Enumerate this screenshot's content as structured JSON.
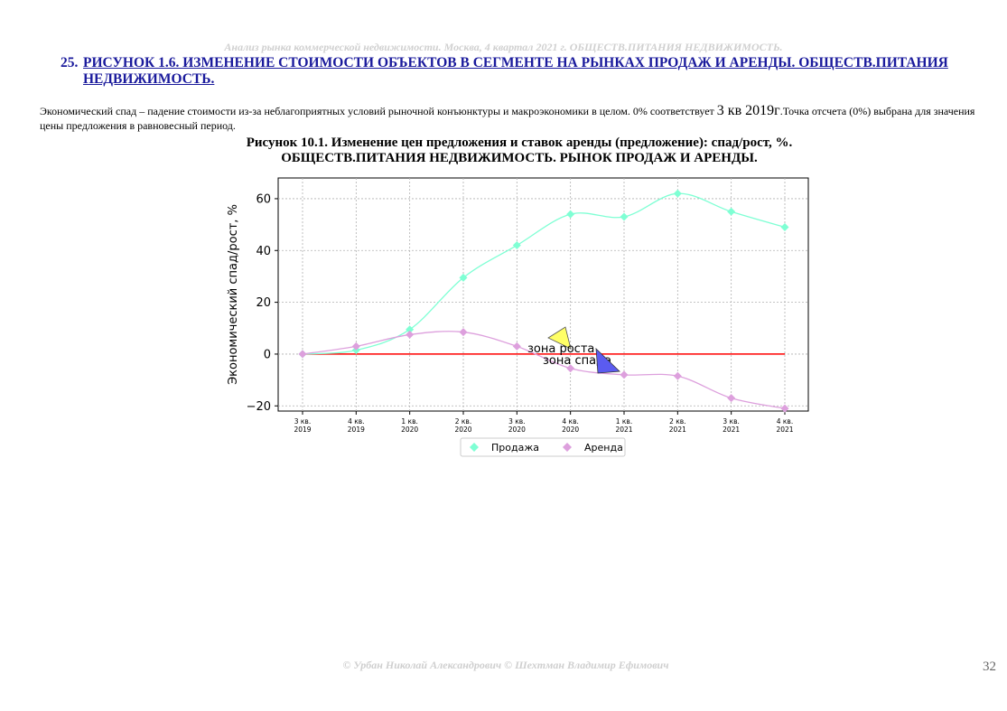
{
  "header": {
    "running_title": "Анализ рынка коммерческой недвижимости.  Москва, 4 квартал 2021 г.  ОБЩЕСТВ.ПИТАНИЯ НЕДВИЖИМОСТЬ."
  },
  "section": {
    "number": "25.",
    "title": "РИСУНОК 1.6. ИЗМЕНЕНИЕ СТОИМОСТИ ОБЪЕКТОВ В СЕГМЕНТЕ НА РЫНКАХ ПРОДАЖ И АРЕНДЫ. ОБЩЕСТВ.ПИТАНИЯ НЕДВИЖИМОСТЬ."
  },
  "description": {
    "part1": "Экономический спад – падение стоимости из-за неблагоприятных условий рыночной конъюнктуры и макроэкономики в целом. 0% соответствует ",
    "part2": "3 кв 2019г",
    "part3": ".Точка отсчета (0%) выбрана для значения цены предложения в равновесный период."
  },
  "figure": {
    "caption_line1": "Рисунок 10.1. Изменение цен предложения и ставок аренды (предложение): спад/рост, %.",
    "caption_line2": "ОБЩЕСТВ.ПИТАНИЯ НЕДВИЖИМОСТЬ. РЫНОК ПРОДАЖ И АРЕНДЫ."
  },
  "chart_data": {
    "type": "line",
    "ylabel": "Экономический спад/рост, %",
    "xlabel": "",
    "categories": [
      "3 кв.\n2019",
      "4 кв.\n2019",
      "1 кв.\n2020",
      "2 кв.\n2020",
      "3 кв.\n2020",
      "4 кв.\n2020",
      "1 кв.\n2021",
      "2 кв.\n2021",
      "3 кв.\n2021",
      "4 кв.\n2021"
    ],
    "ylim": [
      -22,
      68
    ],
    "yticks": [
      -20,
      0,
      20,
      40,
      60
    ],
    "ytick_labels": [
      "−20",
      "0",
      "20",
      "40",
      "60"
    ],
    "grid": true,
    "legend_position": "bottom-center",
    "series": [
      {
        "name": "Продажа",
        "color": "#7fffd4",
        "marker": "diamond",
        "values": [
          0,
          1.5,
          9.5,
          29.5,
          42,
          54,
          53,
          62,
          55,
          49
        ]
      },
      {
        "name": "Аренда",
        "color": "#dda0dd",
        "marker": "diamond",
        "values": [
          0,
          3,
          7.5,
          8.5,
          3,
          -5.5,
          -8,
          -8.5,
          -17,
          -21
        ]
      }
    ],
    "reference_line": {
      "y": 0,
      "color": "#ff0000"
    },
    "annotations": {
      "growth_zone": {
        "text": "зона роста",
        "color": "#ffff66"
      },
      "decline_zone": {
        "text": "зона спада",
        "color": "#5b5bf0"
      }
    }
  },
  "footer": {
    "authors": "© Урбан Николай Александрович   © Шехтман Владимир Ефимович"
  },
  "page": {
    "number": "32"
  }
}
